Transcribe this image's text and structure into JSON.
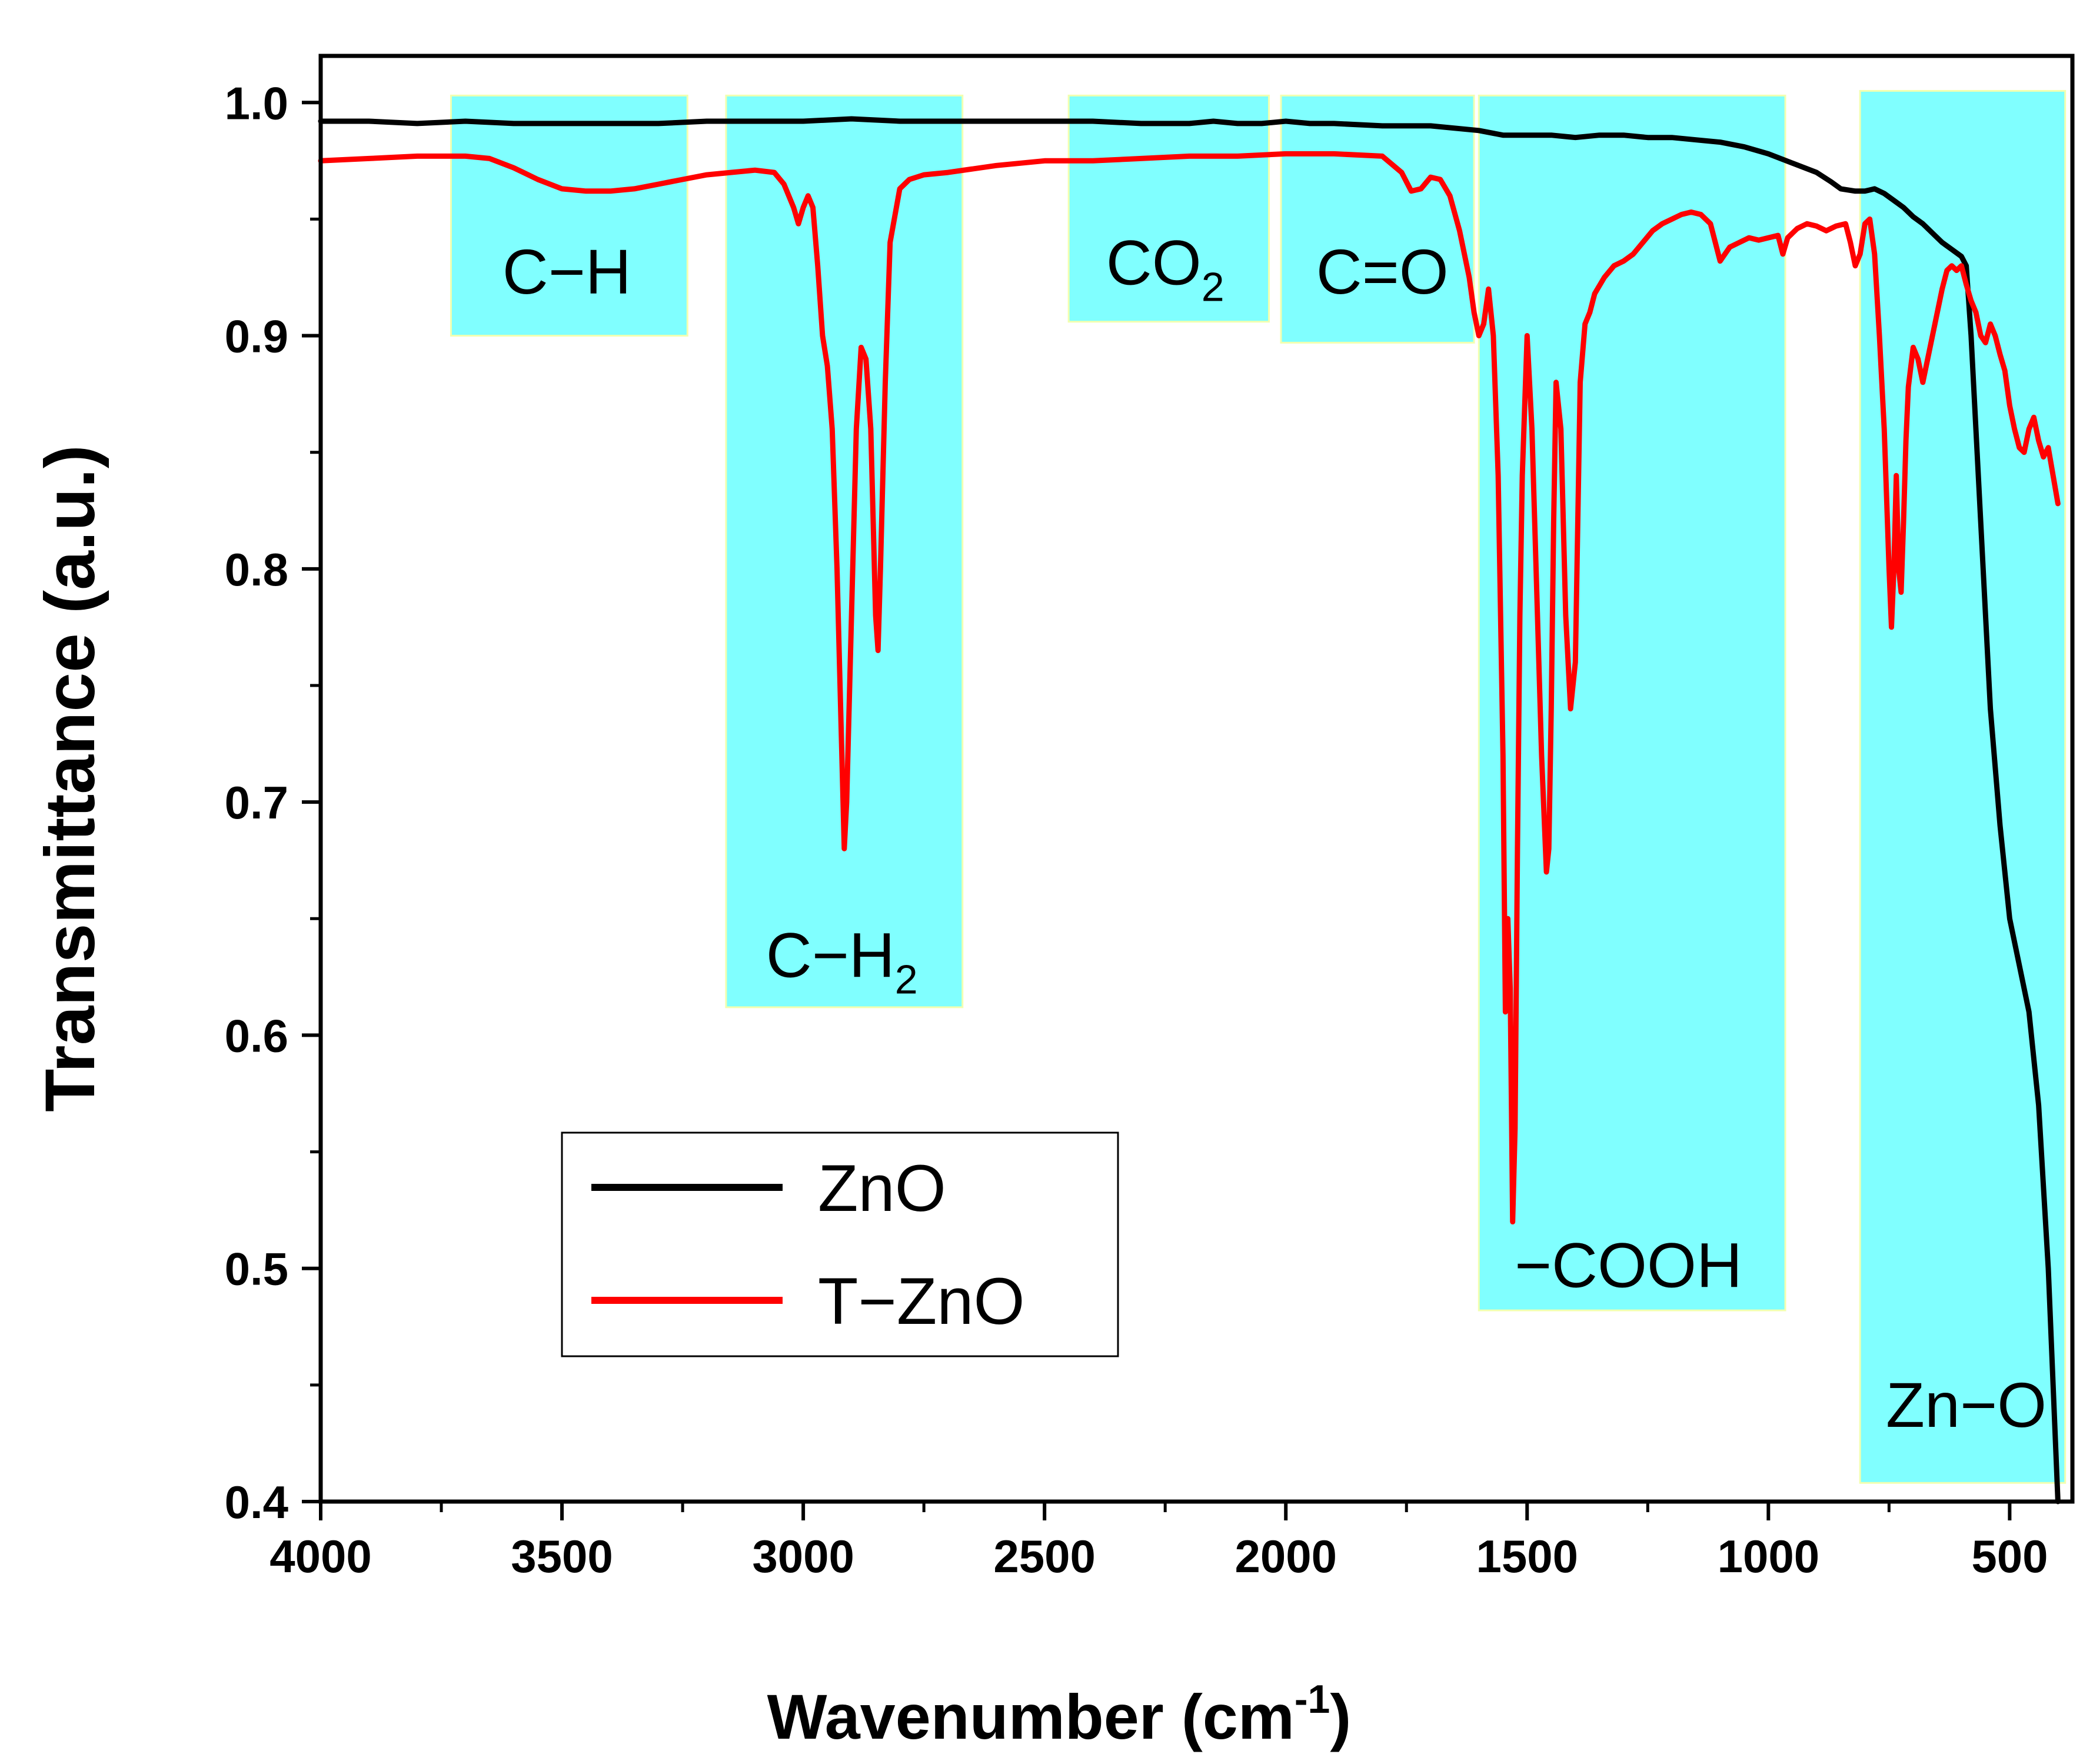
{
  "chart_data": {
    "type": "line",
    "title": "",
    "xlabel": "Wavenumber (cm",
    "xlabel_sup": "-1",
    "xlabel_close": ")",
    "ylabel": "Transmittance (a.u.)",
    "xlim": [
      4000,
      370
    ],
    "ylim": [
      0.4,
      1.02
    ],
    "x_ticks": [
      4000,
      3500,
      3000,
      2500,
      2000,
      1500,
      1000,
      500
    ],
    "x_tick_labels": [
      "4000",
      "3500",
      "3000",
      "2500",
      "2000",
      "1500",
      "1000",
      "500"
    ],
    "y_ticks": [
      0.4,
      0.5,
      0.6,
      0.7,
      0.8,
      0.9,
      1.0
    ],
    "y_tick_labels": [
      "0.4",
      "0.5",
      "0.6",
      "0.7",
      "0.8",
      "0.9",
      "1.0"
    ],
    "legend_position": "lower-left",
    "bands": [
      {
        "name": "C-H",
        "label": "C−H",
        "sub": "",
        "x_from": 3730,
        "x_to": 3240,
        "y_bottom": 0.9,
        "y_top": 1.003,
        "label_x": 3490,
        "label_y": 0.918
      },
      {
        "name": "C-H2",
        "label": "C−H",
        "sub": "2",
        "x_from": 3160,
        "x_to": 2670,
        "y_bottom": 0.612,
        "y_top": 1.003,
        "label_x": 2920,
        "label_y": 0.625
      },
      {
        "name": "CO2",
        "label": "CO",
        "sub": "2",
        "x_from": 2450,
        "x_to": 2035,
        "y_bottom": 0.906,
        "y_top": 1.003,
        "label_x": 2250,
        "label_y": 0.922
      },
      {
        "name": "C=O",
        "label": "C=O",
        "sub": "",
        "x_from": 2010,
        "x_to": 1610,
        "y_bottom": 0.897,
        "y_top": 1.003,
        "label_x": 1800,
        "label_y": 0.918
      },
      {
        "name": "COOH",
        "label": "−COOH",
        "sub": "",
        "x_from": 1600,
        "x_to": 965,
        "y_bottom": 0.482,
        "y_top": 1.003,
        "label_x": 1290,
        "label_y": 0.492
      },
      {
        "name": "Zn-O",
        "label": "Zn−O",
        "sub": "",
        "x_from": 810,
        "x_to": 385,
        "y_bottom": 0.408,
        "y_top": 1.005,
        "label_x": 590,
        "label_y": 0.432
      }
    ],
    "series": [
      {
        "name": "ZnO",
        "color": "#000000",
        "x": [
          4000,
          3900,
          3800,
          3700,
          3600,
          3500,
          3400,
          3300,
          3200,
          3100,
          3000,
          2900,
          2800,
          2700,
          2600,
          2500,
          2400,
          2300,
          2200,
          2150,
          2100,
          2050,
          2000,
          1950,
          1900,
          1800,
          1700,
          1600,
          1550,
          1500,
          1450,
          1400,
          1350,
          1300,
          1250,
          1200,
          1150,
          1100,
          1050,
          1000,
          950,
          900,
          870,
          850,
          820,
          800,
          780,
          760,
          740,
          720,
          700,
          680,
          660,
          640,
          620,
          600,
          590,
          580,
          570,
          560,
          550,
          540,
          520,
          500,
          480,
          460,
          440,
          420,
          410,
          400
        ],
        "values": [
          0.992,
          0.992,
          0.991,
          0.992,
          0.991,
          0.991,
          0.991,
          0.991,
          0.992,
          0.992,
          0.992,
          0.993,
          0.992,
          0.992,
          0.992,
          0.992,
          0.992,
          0.991,
          0.991,
          0.992,
          0.991,
          0.991,
          0.992,
          0.991,
          0.991,
          0.99,
          0.99,
          0.988,
          0.986,
          0.986,
          0.986,
          0.985,
          0.986,
          0.986,
          0.985,
          0.985,
          0.984,
          0.983,
          0.981,
          0.978,
          0.974,
          0.97,
          0.966,
          0.963,
          0.962,
          0.962,
          0.963,
          0.961,
          0.958,
          0.955,
          0.951,
          0.948,
          0.944,
          0.94,
          0.937,
          0.934,
          0.93,
          0.9,
          0.86,
          0.82,
          0.78,
          0.74,
          0.69,
          0.65,
          0.63,
          0.61,
          0.57,
          0.5,
          0.45,
          0.4
        ]
      },
      {
        "name": "T-ZnO",
        "color": "#ff0000",
        "x": [
          4000,
          3900,
          3800,
          3700,
          3650,
          3600,
          3550,
          3500,
          3450,
          3400,
          3350,
          3300,
          3250,
          3200,
          3150,
          3100,
          3060,
          3040,
          3020,
          3010,
          3000,
          2990,
          2980,
          2970,
          2960,
          2950,
          2940,
          2930,
          2920,
          2915,
          2910,
          2900,
          2890,
          2880,
          2870,
          2860,
          2850,
          2845,
          2840,
          2830,
          2820,
          2800,
          2780,
          2750,
          2700,
          2600,
          2500,
          2400,
          2300,
          2200,
          2100,
          2000,
          1900,
          1800,
          1760,
          1740,
          1720,
          1700,
          1680,
          1660,
          1640,
          1620,
          1610,
          1600,
          1590,
          1580,
          1570,
          1560,
          1550,
          1545,
          1540,
          1535,
          1530,
          1525,
          1520,
          1515,
          1510,
          1500,
          1490,
          1480,
          1470,
          1460,
          1455,
          1450,
          1445,
          1440,
          1430,
          1420,
          1410,
          1400,
          1395,
          1390,
          1380,
          1370,
          1360,
          1340,
          1320,
          1300,
          1280,
          1260,
          1240,
          1220,
          1200,
          1180,
          1160,
          1140,
          1120,
          1110,
          1100,
          1080,
          1060,
          1040,
          1020,
          1000,
          980,
          970,
          960,
          940,
          920,
          900,
          880,
          860,
          840,
          830,
          820,
          810,
          800,
          790,
          780,
          770,
          760,
          750,
          745,
          740,
          735,
          730,
          725,
          720,
          715,
          710,
          700,
          690,
          680,
          670,
          660,
          650,
          640,
          630,
          620,
          610,
          600,
          590,
          580,
          570,
          560,
          550,
          540,
          530,
          520,
          510,
          500,
          490,
          480,
          470,
          460,
          450,
          440,
          430,
          420,
          410,
          400
        ],
        "values": [
          0.975,
          0.976,
          0.977,
          0.977,
          0.976,
          0.972,
          0.967,
          0.963,
          0.962,
          0.962,
          0.963,
          0.965,
          0.967,
          0.969,
          0.97,
          0.971,
          0.97,
          0.965,
          0.955,
          0.948,
          0.955,
          0.96,
          0.955,
          0.93,
          0.9,
          0.887,
          0.86,
          0.8,
          0.72,
          0.68,
          0.7,
          0.78,
          0.86,
          0.895,
          0.89,
          0.86,
          0.78,
          0.765,
          0.8,
          0.88,
          0.94,
          0.963,
          0.967,
          0.969,
          0.97,
          0.973,
          0.975,
          0.975,
          0.976,
          0.977,
          0.977,
          0.978,
          0.978,
          0.977,
          0.97,
          0.962,
          0.963,
          0.968,
          0.967,
          0.96,
          0.945,
          0.925,
          0.91,
          0.9,
          0.905,
          0.92,
          0.9,
          0.84,
          0.72,
          0.61,
          0.65,
          0.62,
          0.52,
          0.56,
          0.68,
          0.78,
          0.84,
          0.9,
          0.86,
          0.79,
          0.72,
          0.67,
          0.68,
          0.74,
          0.82,
          0.88,
          0.86,
          0.78,
          0.74,
          0.76,
          0.82,
          0.88,
          0.905,
          0.91,
          0.918,
          0.925,
          0.93,
          0.932,
          0.935,
          0.94,
          0.945,
          0.948,
          0.95,
          0.952,
          0.953,
          0.952,
          0.948,
          0.94,
          0.932,
          0.938,
          0.94,
          0.942,
          0.941,
          0.942,
          0.943,
          0.935,
          0.942,
          0.946,
          0.948,
          0.947,
          0.945,
          0.947,
          0.948,
          0.94,
          0.93,
          0.935,
          0.948,
          0.95,
          0.935,
          0.9,
          0.86,
          0.8,
          0.775,
          0.8,
          0.84,
          0.8,
          0.79,
          0.82,
          0.855,
          0.878,
          0.895,
          0.89,
          0.88,
          0.89,
          0.9,
          0.91,
          0.92,
          0.928,
          0.93,
          0.928,
          0.93,
          0.922,
          0.915,
          0.91,
          0.9,
          0.897,
          0.905,
          0.9,
          0.892,
          0.885,
          0.87,
          0.86,
          0.852,
          0.85,
          0.86,
          0.865,
          0.855,
          0.848,
          0.852,
          0.84,
          0.828
        ]
      }
    ]
  }
}
